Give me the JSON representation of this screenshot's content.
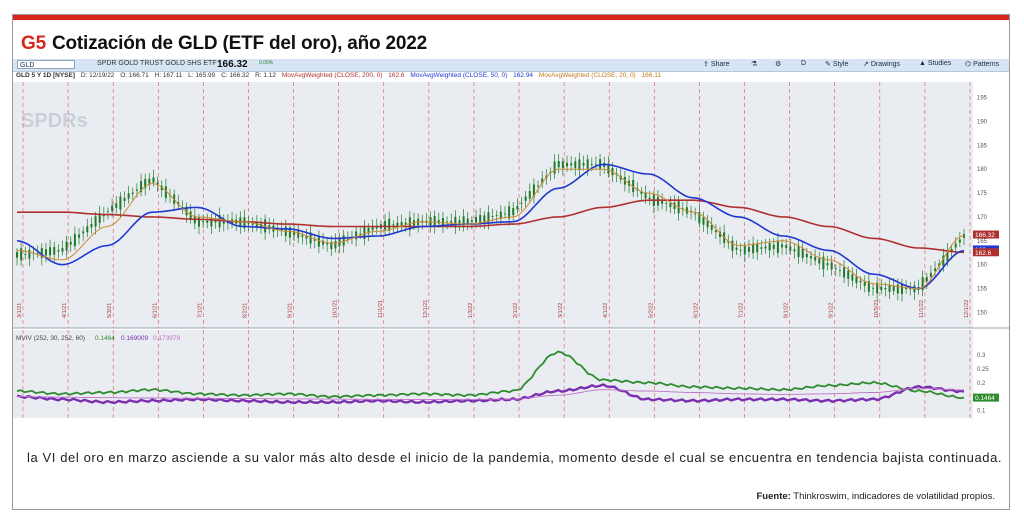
{
  "figure": {
    "tag": "G5",
    "title": "Cotización de GLD (ETF del oro), año 2022",
    "caption": "la VI del oro en marzo asciende a su valor más alto desde el inicio de la pandemia, momento desde el cual se encuentra en tendencia bajista continuada.",
    "source_label": "Fuente:",
    "source_text": "Thinkroswim, indicadores de volatilidad propios."
  },
  "toolbar": {
    "symbol": "GLD",
    "name": "SPDR GOLD TRUST GOLD SHS ETF",
    "price": "166.32",
    "change": "0.00%",
    "buttons": [
      "Share",
      "D",
      "Style",
      "Drawings",
      "Studies",
      "Patterns"
    ]
  },
  "info": {
    "symbol_tf": "GLD 5 Y 1D [NYSE]",
    "date": "D: 12/19/22",
    "open": "O: 166.71",
    "high": "H: 167.11",
    "low": "L: 165.99",
    "close": "C: 166.32",
    "range": "R: 1.12",
    "ma200_label": "MovAvgWeighted (CLOSE, 200, 0)",
    "ma200_value": "162.6",
    "ma50_label": "MovAvgWeighted (CLOSE, 50, 0)",
    "ma50_value": "162.94",
    "ma20_label": "MovAvgWeighted (CLOSE, 20, 0)",
    "ma20_value": "166.11"
  },
  "watermark": "SPDRs",
  "lower_panel_header": {
    "label": "MVIV (252, 30, 252, 60)",
    "v1": "0.1464",
    "v2": "0.169009",
    "v3": "0.173979"
  },
  "chart_data": [
    {
      "type": "line",
      "panel": "price",
      "y_ticks": [
        150,
        155,
        160,
        165,
        170,
        175,
        180,
        185,
        190,
        195
      ],
      "ylim": [
        148,
        197
      ],
      "x_dates": [
        "3/1/21",
        "4/1/21",
        "5/3/21",
        "6/1/21",
        "7/1/21",
        "8/2/21",
        "9/1/21",
        "10/1/21",
        "11/1/21",
        "12/1/21",
        "1/3/22",
        "2/1/22",
        "3/1/22",
        "4/1/22",
        "5/2/22",
        "6/1/22",
        "7/1/22",
        "8/1/22",
        "9/1/22",
        "10/3/22",
        "11/1/22",
        "12/1/22"
      ],
      "series": [
        {
          "name": "GLD",
          "color": "#2e7d32",
          "values": [
            162,
            163,
            171,
            178,
            169,
            169,
            167,
            164,
            168,
            169,
            169,
            171,
            181,
            181,
            174,
            171,
            163,
            164,
            160,
            155,
            155,
            166
          ]
        },
        {
          "name": "MovAvgWeighted (CLOSE, 200, 0)",
          "color": "#b03030",
          "values": [
            171,
            171,
            170.5,
            170,
            169.5,
            169,
            168.5,
            168,
            168,
            168,
            168,
            168.5,
            170,
            172,
            173.5,
            173.5,
            172,
            170,
            168,
            165.5,
            163.5,
            162.6
          ]
        },
        {
          "name": "MovAvgWeighted (CLOSE, 50, 0)",
          "color": "#2038d0",
          "values": [
            165,
            160,
            164,
            171,
            172,
            168,
            167.5,
            165.5,
            166,
            168,
            168.5,
            169,
            176,
            181,
            179,
            174,
            170,
            166,
            163,
            158,
            155,
            162.94
          ]
        },
        {
          "name": "MovAvgWeighted (CLOSE, 20, 0)",
          "color": "#d08a30",
          "values": [
            163,
            161,
            168,
            177,
            170,
            169,
            167,
            164.5,
            167,
            169,
            168.5,
            170,
            180,
            180,
            175,
            171,
            164,
            165,
            161,
            156,
            155,
            166.11
          ]
        }
      ],
      "price_labels": [
        "166.32",
        "163",
        "162.6"
      ]
    },
    {
      "type": "line",
      "panel": "volatility",
      "y_ticks": [
        0.1,
        0.15,
        0.2,
        0.25,
        0.3
      ],
      "ylim": [
        0.08,
        0.34
      ],
      "series": [
        {
          "name": "0.1464",
          "color": "#2e8b2e",
          "values": [
            0.17,
            0.16,
            0.165,
            0.175,
            0.16,
            0.155,
            0.16,
            0.15,
            0.155,
            0.16,
            0.155,
            0.17,
            0.31,
            0.21,
            0.2,
            0.185,
            0.18,
            0.175,
            0.19,
            0.2,
            0.17,
            0.1464
          ]
        },
        {
          "name": "0.169009",
          "color": "#7a2fb0",
          "values": [
            0.15,
            0.14,
            0.13,
            0.135,
            0.14,
            0.135,
            0.13,
            0.13,
            0.135,
            0.13,
            0.135,
            0.14,
            0.17,
            0.19,
            0.14,
            0.135,
            0.14,
            0.14,
            0.135,
            0.14,
            0.185,
            0.169
          ]
        },
        {
          "name": "0.173979",
          "color": "#c070c8",
          "values": [
            0.15,
            0.148,
            0.146,
            0.145,
            0.144,
            0.143,
            0.142,
            0.141,
            0.14,
            0.14,
            0.14,
            0.141,
            0.155,
            0.175,
            0.17,
            0.165,
            0.16,
            0.158,
            0.16,
            0.165,
            0.18,
            0.174
          ]
        }
      ],
      "value_label": "0.1464"
    }
  ]
}
